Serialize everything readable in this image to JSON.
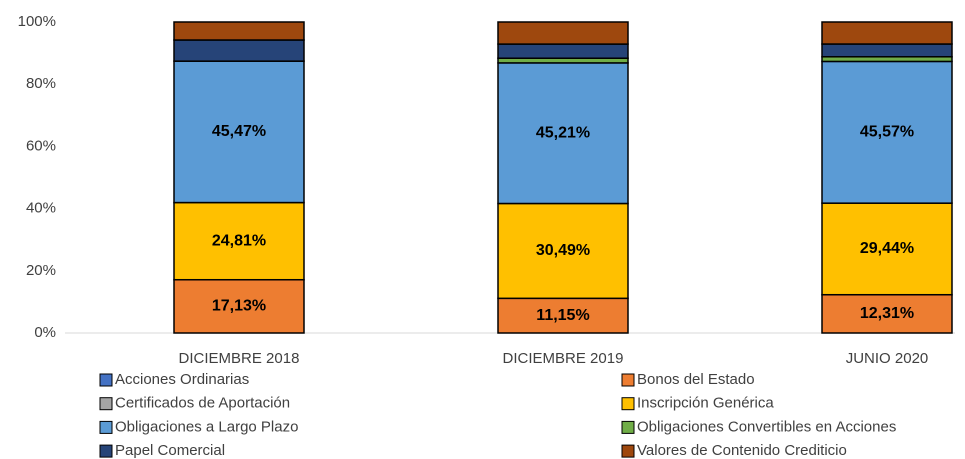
{
  "chart_data": {
    "type": "stacked_bar",
    "categories": [
      "DICIEMBRE 2018",
      "DICIEMBRE 2019",
      "JUNIO 2020"
    ],
    "series": [
      {
        "name": "Acciones Ordinarias",
        "color": "#4472c4",
        "values": [
          0,
          0,
          0
        ]
      },
      {
        "name": "Certificados de Aportación",
        "color": "#a5a5a5",
        "values": [
          0,
          0,
          0
        ]
      },
      {
        "name": "Bonos del Estado",
        "color": "#ed7d31",
        "values": [
          17.13,
          11.15,
          12.31
        ],
        "value_labels": [
          "17,13%",
          "11,15%",
          "12,31%"
        ]
      },
      {
        "name": "Inscripción Genérica",
        "color": "#ffc000",
        "values": [
          24.81,
          30.49,
          29.44
        ],
        "value_labels": [
          "24,81%",
          "30,49%",
          "29,44%"
        ]
      },
      {
        "name": "Obligaciones a Largo Plazo",
        "color": "#5b9bd5",
        "values": [
          45.47,
          45.21,
          45.57
        ],
        "value_labels": [
          "45,47%",
          "45,21%",
          "45,57%"
        ]
      },
      {
        "name": "Obligaciones Convertibles en Acciones",
        "color": "#70ad47",
        "values": [
          0,
          1.5,
          1.5
        ]
      },
      {
        "name": "Papel Comercial",
        "color": "#264478",
        "values": [
          6.8,
          4.55,
          4.1
        ]
      },
      {
        "name": "Valores de Contenido Crediticio",
        "color": "#9e480e",
        "values": [
          5.79,
          7.1,
          7.08
        ]
      }
    ],
    "legend_order": [
      0,
      2,
      1,
      3,
      4,
      5,
      6,
      7
    ],
    "ylim": [
      0,
      100
    ],
    "yticks": [
      {
        "value": 0,
        "label": "0%"
      },
      {
        "value": 20,
        "label": "20%"
      },
      {
        "value": 40,
        "label": "40%"
      },
      {
        "value": 60,
        "label": "60%"
      },
      {
        "value": 80,
        "label": "80%"
      },
      {
        "value": 100,
        "label": "100%"
      }
    ]
  }
}
